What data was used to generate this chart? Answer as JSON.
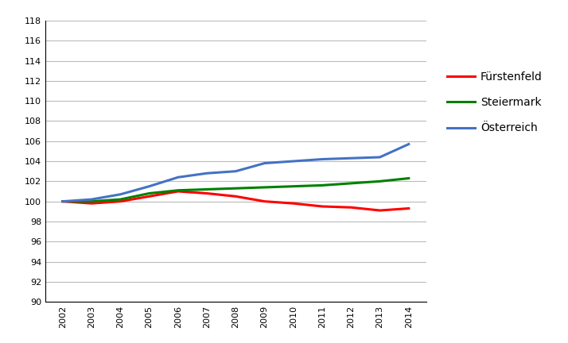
{
  "years": [
    2002,
    2003,
    2004,
    2005,
    2006,
    2007,
    2008,
    2009,
    2010,
    2011,
    2012,
    2013,
    2014
  ],
  "fuerstenfeld": [
    100.0,
    99.8,
    100.0,
    100.5,
    101.0,
    100.8,
    100.5,
    100.0,
    99.8,
    99.5,
    99.4,
    99.1,
    99.3
  ],
  "steiermark": [
    100.0,
    100.0,
    100.2,
    100.8,
    101.1,
    101.2,
    101.3,
    101.4,
    101.5,
    101.6,
    101.8,
    102.0,
    102.3
  ],
  "oesterreich": [
    100.0,
    100.2,
    100.7,
    101.5,
    102.4,
    102.8,
    103.0,
    103.8,
    104.0,
    104.2,
    104.3,
    104.4,
    105.7
  ],
  "fuerstenfeld_color": "#ff0000",
  "steiermark_color": "#008000",
  "oesterreich_color": "#4472c4",
  "ylim": [
    90,
    118
  ],
  "yticks": [
    90,
    92,
    94,
    96,
    98,
    100,
    102,
    104,
    106,
    108,
    110,
    112,
    114,
    116,
    118
  ],
  "legend_labels": [
    "Fürstenfeld",
    "Steiermark",
    "Österreich"
  ],
  "line_width": 2.2,
  "background_color": "#ffffff",
  "grid_color": "#bbbbbb",
  "tick_fontsize": 8,
  "legend_fontsize": 10
}
